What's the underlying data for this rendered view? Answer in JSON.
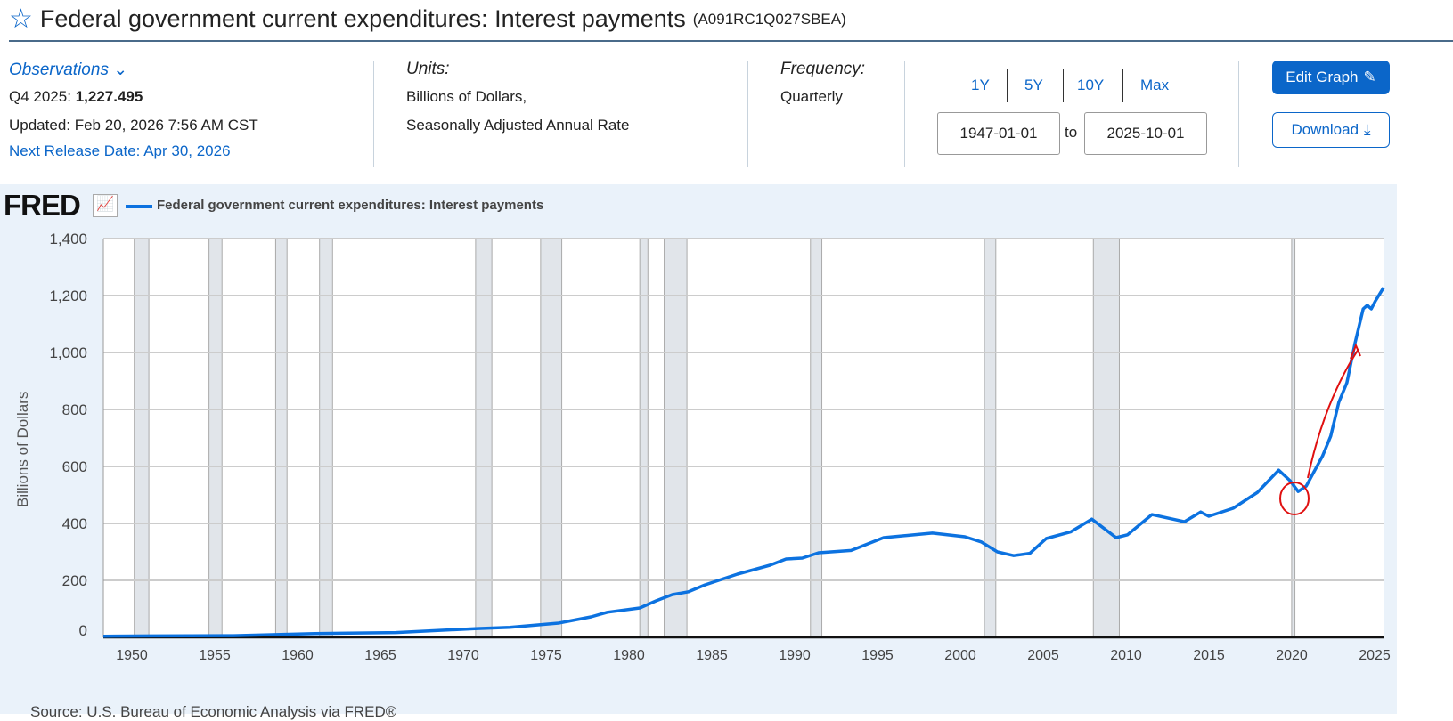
{
  "header": {
    "title": "Federal government current expenditures: Interest payments",
    "series_id": "(A091RC1Q027SBEA)"
  },
  "observations": {
    "label": "Observations",
    "period": "Q4 2025:",
    "value": "1,227.495",
    "updated": "Updated: Feb 20, 2026 7:56 AM CST",
    "next_release": "Next Release Date: Apr 30, 2026"
  },
  "units": {
    "label": "Units:",
    "line1": "Billions of Dollars,",
    "line2": "Seasonally Adjusted Annual Rate"
  },
  "frequency": {
    "label": "Frequency:",
    "value": "Quarterly"
  },
  "range": {
    "buttons": [
      "1Y",
      "5Y",
      "10Y",
      "Max"
    ],
    "start": "1947-01-01",
    "to": "to",
    "end": "2025-10-01"
  },
  "actions": {
    "edit": "Edit Graph",
    "download": "Download"
  },
  "source": "Source: U.S. Bureau of Economic Analysis via FRED®",
  "colors": {
    "line": "#0c72e0",
    "recession": "#e1e5ea",
    "accent": "#0b66c9"
  },
  "chart_data": {
    "type": "line",
    "logo": "FRED",
    "legend": "Federal government current expenditures: Interest payments",
    "ylabel": "Billions of Dollars",
    "ylim": [
      0,
      1400
    ],
    "yticks": [
      "0",
      "200",
      "400",
      "600",
      "800",
      "1,000",
      "1,200",
      "1,400"
    ],
    "xticks": [
      "1950",
      "1955",
      "1960",
      "1965",
      "1970",
      "1975",
      "1980",
      "1985",
      "1990",
      "1995",
      "2000",
      "2005",
      "2010",
      "2015",
      "2020",
      "2025"
    ],
    "xlim": [
      1947,
      2025.75
    ],
    "recessions": [
      [
        1948.9,
        1949.8
      ],
      [
        1953.5,
        1954.3
      ],
      [
        1957.6,
        1958.3
      ],
      [
        1960.3,
        1961.1
      ],
      [
        1969.9,
        1970.9
      ],
      [
        1973.9,
        1975.2
      ],
      [
        1980.0,
        1980.5
      ],
      [
        1981.5,
        1982.9
      ],
      [
        1990.5,
        1991.2
      ],
      [
        2001.2,
        2001.9
      ],
      [
        2007.9,
        2009.5
      ],
      [
        2020.1,
        2020.3
      ]
    ],
    "x": [
      1947,
      1950,
      1955,
      1960,
      1965,
      1970,
      1972,
      1975,
      1977,
      1978,
      1980,
      1981,
      1982,
      1983,
      1984,
      1986,
      1988,
      1989,
      1990,
      1991,
      1993,
      1995,
      1998,
      2000,
      2001,
      2002,
      2003,
      2004,
      2005,
      2006.5,
      2007.8,
      2008.5,
      2009.3,
      2010,
      2011.5,
      2013.5,
      2014.5,
      2015,
      2016.5,
      2018,
      2019.3,
      2020,
      2020.5,
      2021,
      2022,
      2022.5,
      2023,
      2023.5,
      2024,
      2024.5,
      2024.75,
      2025,
      2025.25,
      2025.75
    ],
    "values": [
      4,
      5,
      6,
      13,
      17,
      31,
      35,
      50,
      72,
      88,
      103,
      128,
      150,
      160,
      184,
      222,
      253,
      275,
      278,
      297,
      305,
      350,
      366,
      353,
      335,
      300,
      287,
      295,
      347,
      370,
      415,
      385,
      350,
      360,
      431,
      406,
      440,
      425,
      453,
      509,
      587,
      550,
      512,
      531,
      637,
      706,
      825,
      894,
      1034,
      1153,
      1166,
      1153,
      1181,
      1227.495
    ]
  }
}
